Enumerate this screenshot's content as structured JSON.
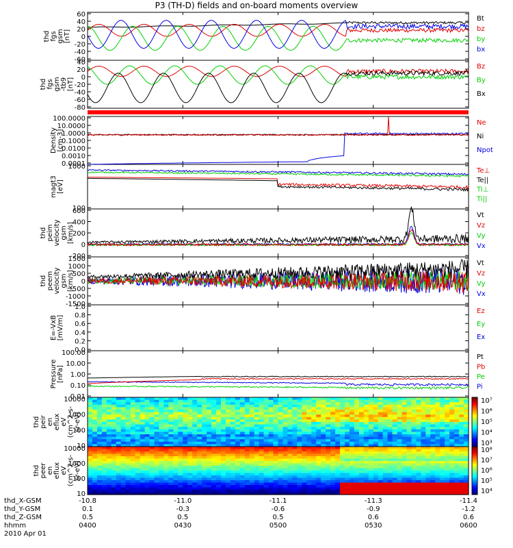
{
  "title": "P3 (TH-D) fields and on-board moments overview",
  "date": "2010 Apr 01",
  "colors": {
    "black": "#000000",
    "red": "#e00000",
    "green": "#00d000",
    "blue": "#0000e0",
    "bar": "#ff0000"
  },
  "chart_data": [
    {
      "type": "line",
      "ylabel": [
        "thd",
        "fgs",
        "gsm",
        "[nT]"
      ],
      "yticks": [
        "60",
        "40",
        "20",
        "0",
        "-20",
        "-40",
        "-60"
      ],
      "ylim": [
        -60,
        60
      ],
      "legend": [
        {
          "name": "Bt",
          "color": "#000000"
        },
        {
          "name": "bz",
          "color": "#e00000"
        },
        {
          "name": "by",
          "color": "#00d000"
        },
        {
          "name": "bx",
          "color": "#0000e0"
        }
      ]
    },
    {
      "type": "line",
      "ylabel": [
        "thd",
        "fgs",
        "gsm",
        "-tb9",
        "[nT]"
      ],
      "yticks": [
        "40",
        "20",
        "0",
        "-20",
        "-40",
        "-60",
        "-80"
      ],
      "ylim": [
        -90,
        40
      ],
      "legend": [
        {
          "name": "Bz",
          "color": "#e00000"
        },
        {
          "name": "By",
          "color": "#00d000"
        },
        {
          "name": "Bx",
          "color": "#000000"
        }
      ]
    },
    {
      "type": "line",
      "ylabel": [
        "Density",
        "[cm-3]"
      ],
      "yticks": [
        "100.0000",
        "10.0000",
        "1.0000",
        "0.1000",
        "0.0100",
        "0.0010",
        "0.0001"
      ],
      "ylim": [
        0.0001,
        100
      ],
      "log": true,
      "legend": [
        {
          "name": "Ne",
          "color": "#e00000"
        },
        {
          "name": "Ni",
          "color": "#000000"
        },
        {
          "name": "Npot",
          "color": "#0000e0"
        }
      ]
    },
    {
      "type": "line",
      "ylabel": [
        "magt3",
        "[eV]"
      ],
      "yticks": [
        "1000",
        "100"
      ],
      "log": true,
      "legend": [
        {
          "name": "Te⊥",
          "color": "#e00000"
        },
        {
          "name": "Te||",
          "color": "#000000"
        },
        {
          "name": "Ti⊥",
          "color": "#00d000"
        },
        {
          "name": "Ti||",
          "color": "#00d000"
        }
      ]
    },
    {
      "type": "line",
      "ylabel": [
        "thd",
        "peim",
        "velocity",
        "gsm",
        "[km/s]"
      ],
      "yticks": [
        "600",
        "400",
        "200",
        "0",
        "-200"
      ],
      "ylim": [
        -200,
        600
      ],
      "legend": [
        {
          "name": "Vt",
          "color": "#000000"
        },
        {
          "name": "Vz",
          "color": "#e00000"
        },
        {
          "name": "Vy",
          "color": "#00d000"
        },
        {
          "name": "Vx",
          "color": "#0000e0"
        }
      ]
    },
    {
      "type": "line",
      "ylabel": [
        "thd",
        "peem",
        "velocity",
        "gsm",
        "[km/s]"
      ],
      "yticks": [
        "1500",
        "1000",
        "500",
        "0",
        "-500",
        "-1000",
        "-1500"
      ],
      "ylim": [
        -1500,
        1500
      ],
      "legend": [
        {
          "name": "Vt",
          "color": "#000000"
        },
        {
          "name": "Vz",
          "color": "#e00000"
        },
        {
          "name": "Vy",
          "color": "#00d000"
        },
        {
          "name": "Vx",
          "color": "#0000e0"
        }
      ]
    },
    {
      "type": "line",
      "ylabel": [
        "E=-VxB",
        "[mV/m]"
      ],
      "yticks": [
        "1.0",
        "0.8",
        "0.6",
        "0.4",
        "0.2",
        "0.0"
      ],
      "ylim": [
        0,
        1
      ],
      "legend": [
        {
          "name": "Ez",
          "color": "#e00000"
        },
        {
          "name": "Ey",
          "color": "#00d000"
        },
        {
          "name": "Ex",
          "color": "#0000e0"
        }
      ]
    },
    {
      "type": "line",
      "ylabel": [
        "Pressure",
        "[nPa]"
      ],
      "yticks": [
        "100.00",
        "10.00",
        "1.00",
        "0.10",
        "0.01"
      ],
      "ylim": [
        0.01,
        100
      ],
      "log": true,
      "legend": [
        {
          "name": "Pt",
          "color": "#000000"
        },
        {
          "name": "Pb",
          "color": "#e00000"
        },
        {
          "name": "Pe",
          "color": "#00d000"
        },
        {
          "name": "Pi",
          "color": "#0000e0"
        }
      ]
    },
    {
      "type": "heatmap",
      "ylabel": [
        "thd",
        "peir",
        "en",
        "eflux",
        "eV",
        "(cm^2-s-",
        "sr-eV)"
      ],
      "yticks": [
        "10000",
        "1000",
        "100",
        "10"
      ],
      "log": true,
      "colorbar": [
        "10⁷",
        "10⁶",
        "10⁵",
        "10⁴",
        "10³"
      ]
    },
    {
      "type": "heatmap",
      "ylabel": [
        "thd",
        "peer",
        "en",
        "eflux",
        "eV",
        "(cm^2-s-",
        "sr-eV)"
      ],
      "yticks": [
        "10000",
        "1000",
        "100",
        "10"
      ],
      "log": true,
      "colorbar": [
        "10⁸",
        "10⁷",
        "10⁶",
        "10⁵",
        "10⁴"
      ]
    }
  ],
  "xaxis": {
    "row_labels": [
      "thd_X-GSM",
      "thd_Y-GSM",
      "thd_Z-GSM",
      "hhmm"
    ],
    "columns": [
      [
        "-10.8",
        "0.1",
        "0.5",
        "0400"
      ],
      [
        "-11.0",
        "-0.3",
        "0.5",
        "0430"
      ],
      [
        "-11.1",
        "-0.6",
        "0.5",
        "0500"
      ],
      [
        "-11.3",
        "-0.9",
        "0.6",
        "0530"
      ],
      [
        "-11.4",
        "-1.2",
        "0.6",
        "0600"
      ]
    ]
  }
}
